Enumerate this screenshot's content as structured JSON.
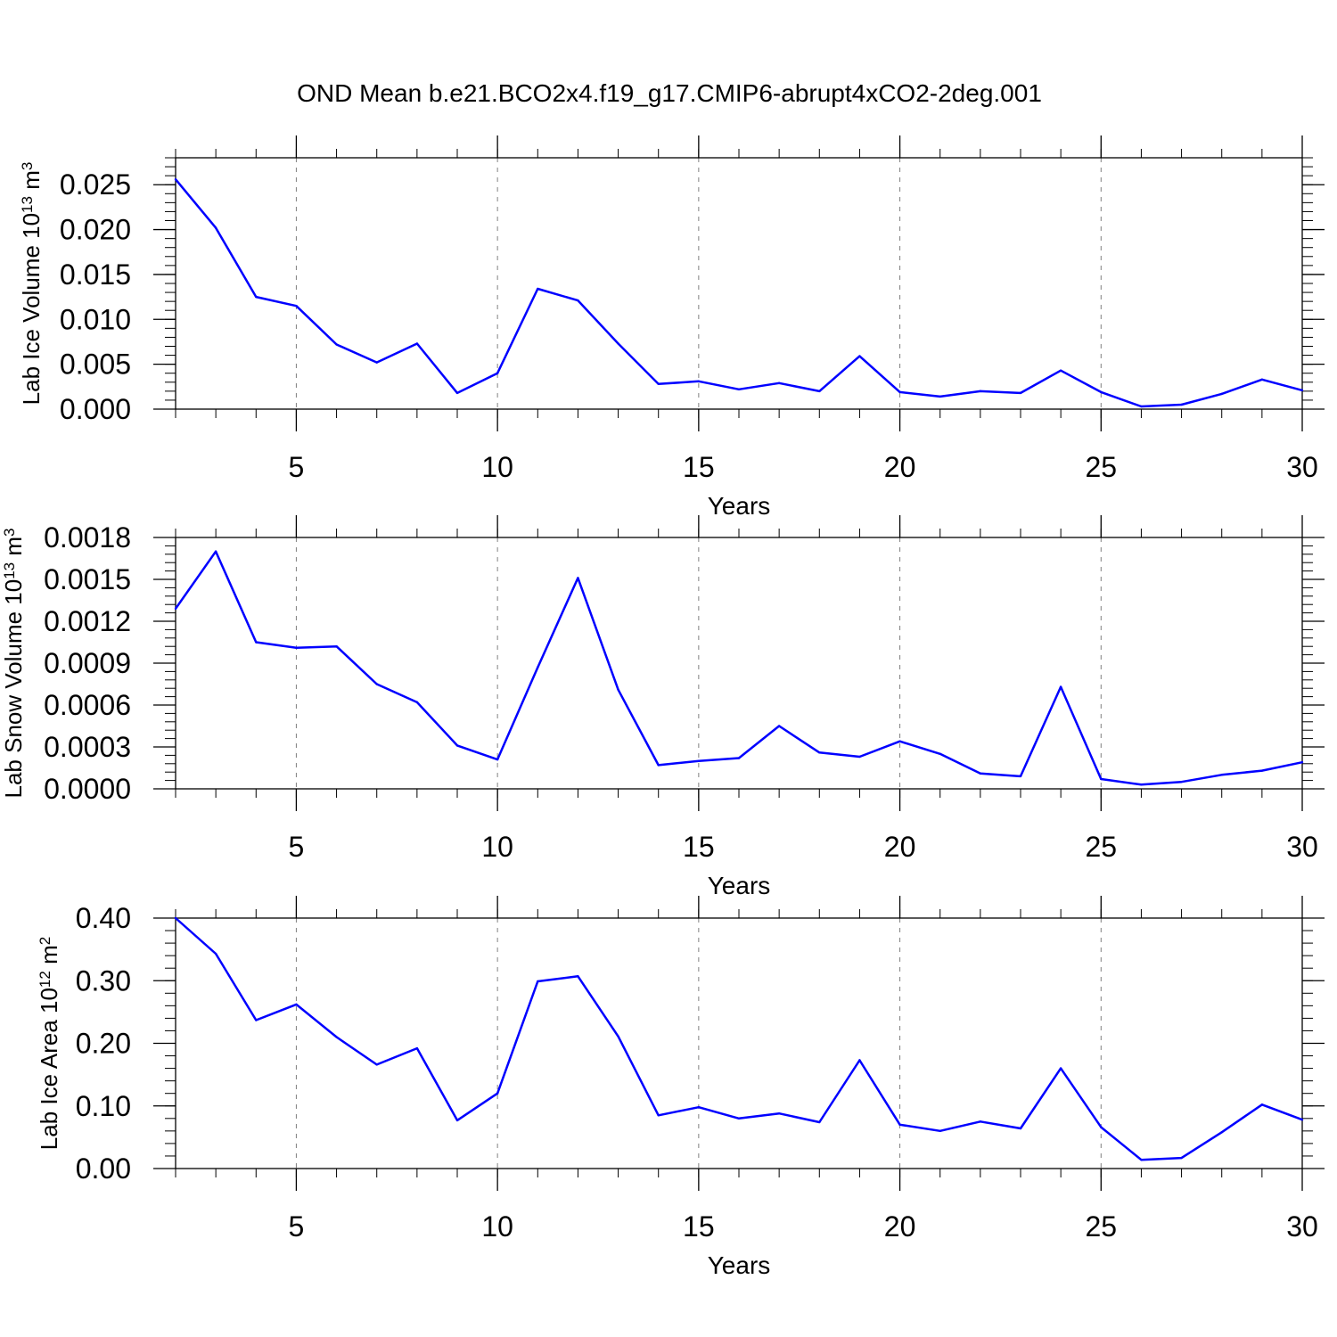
{
  "title": "OND Mean b.e21.BCO2x4.f19_g17.CMIP6-abrupt4xCO2-2deg.001",
  "colors": {
    "line": "#0000ff",
    "axis": "#000000",
    "grid": "#808080"
  },
  "chart_data": [
    {
      "type": "line",
      "xlabel": "Years",
      "ylabel": "Lab Ice Volume 10",
      "ylabel_exp": "13",
      "ylabel_unit": " m",
      "ylabel_unit_exp": "3",
      "xlim": [
        2,
        30
      ],
      "ylim": [
        0,
        0.028
      ],
      "x_ticks": [
        "5",
        "10",
        "15",
        "20",
        "25",
        "30"
      ],
      "y_ticks": [
        "0.000",
        "0.005",
        "0.010",
        "0.015",
        "0.020",
        "0.025"
      ],
      "grid": "vertical dashed at major x ticks",
      "x": [
        2,
        3,
        4,
        5,
        6,
        7,
        8,
        9,
        10,
        11,
        12,
        13,
        14,
        15,
        16,
        17,
        18,
        19,
        20,
        21,
        22,
        23,
        24,
        25,
        26,
        27,
        28,
        29,
        30
      ],
      "series": [
        {
          "values": [
            0.0256,
            0.0202,
            0.0125,
            0.0115,
            0.0072,
            0.0052,
            0.0073,
            0.0018,
            0.004,
            0.0134,
            0.0121,
            0.0073,
            0.0028,
            0.0031,
            0.0022,
            0.0029,
            0.002,
            0.0059,
            0.0019,
            0.0014,
            0.002,
            0.0018,
            0.0043,
            0.0019,
            0.0003,
            0.0005,
            0.0017,
            0.0033,
            0.0021
          ]
        }
      ]
    },
    {
      "type": "line",
      "xlabel": "Years",
      "ylabel": "Lab Snow Volume 10",
      "ylabel_exp": "13",
      "ylabel_unit": " m",
      "ylabel_unit_exp": "3",
      "xlim": [
        2,
        30
      ],
      "ylim": [
        0,
        0.0018
      ],
      "x_ticks": [
        "5",
        "10",
        "15",
        "20",
        "25",
        "30"
      ],
      "y_ticks": [
        "0.0000",
        "0.0003",
        "0.0006",
        "0.0009",
        "0.0012",
        "0.0015",
        "0.0018"
      ],
      "grid": "vertical dashed at major x ticks",
      "x": [
        2,
        3,
        4,
        5,
        6,
        7,
        8,
        9,
        10,
        11,
        12,
        13,
        14,
        15,
        16,
        17,
        18,
        19,
        20,
        21,
        22,
        23,
        24,
        25,
        26,
        27,
        28,
        29,
        30
      ],
      "series": [
        {
          "values": [
            0.00129,
            0.0017,
            0.00105,
            0.00101,
            0.00102,
            0.00075,
            0.00062,
            0.00031,
            0.00021,
            0.00087,
            0.00151,
            0.00071,
            0.00017,
            0.0002,
            0.00022,
            0.00045,
            0.00026,
            0.00023,
            0.00034,
            0.00025,
            0.00011,
            9e-05,
            0.00073,
            7e-05,
            3e-05,
            5e-05,
            0.0001,
            0.00013,
            0.00019
          ]
        }
      ]
    },
    {
      "type": "line",
      "xlabel": "Years",
      "ylabel": "Lab Ice Area 10",
      "ylabel_exp": "12",
      "ylabel_unit": " m",
      "ylabel_unit_exp": "2",
      "xlim": [
        2,
        30
      ],
      "ylim": [
        0,
        0.4
      ],
      "x_ticks": [
        "5",
        "10",
        "15",
        "20",
        "25",
        "30"
      ],
      "y_ticks": [
        "0.00",
        "0.10",
        "0.20",
        "0.30",
        "0.40"
      ],
      "grid": "vertical dashed at major x ticks",
      "x": [
        2,
        3,
        4,
        5,
        6,
        7,
        8,
        9,
        10,
        11,
        12,
        13,
        14,
        15,
        16,
        17,
        18,
        19,
        20,
        21,
        22,
        23,
        24,
        25,
        26,
        27,
        28,
        29,
        30
      ],
      "series": [
        {
          "values": [
            0.4,
            0.343,
            0.237,
            0.262,
            0.21,
            0.166,
            0.192,
            0.077,
            0.12,
            0.299,
            0.307,
            0.211,
            0.085,
            0.098,
            0.08,
            0.088,
            0.074,
            0.173,
            0.07,
            0.06,
            0.075,
            0.064,
            0.16,
            0.066,
            0.014,
            0.017,
            0.058,
            0.102,
            0.078
          ]
        }
      ]
    }
  ]
}
